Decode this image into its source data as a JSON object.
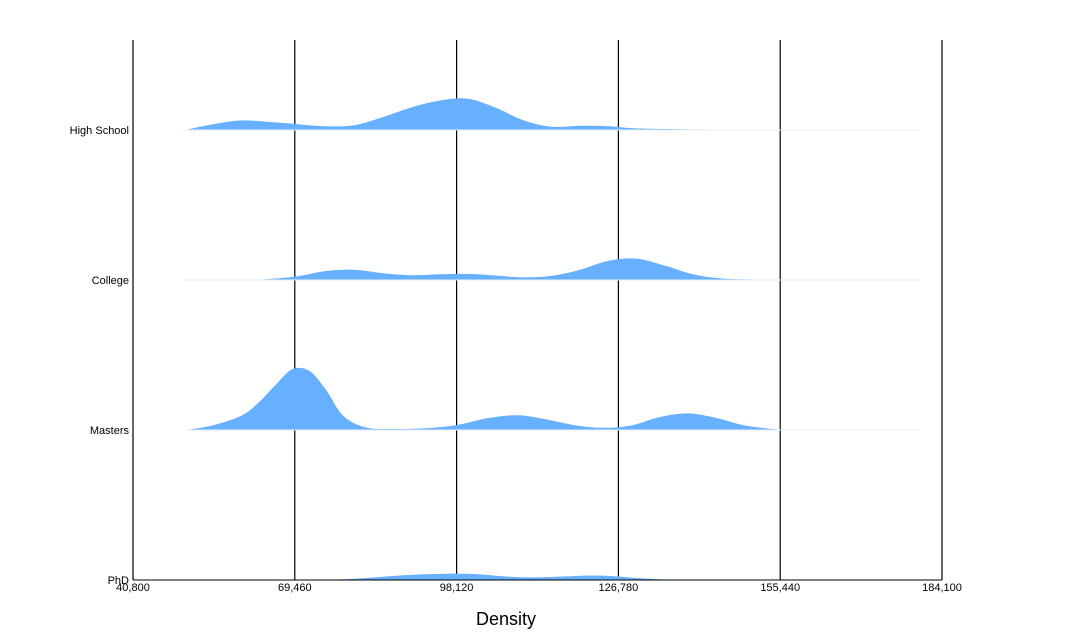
{
  "chart_data": {
    "type": "area",
    "subtype": "ridgeline",
    "title": "",
    "xlabel": "Density",
    "ylabel": "",
    "xlim": [
      40800,
      184100
    ],
    "x_ticks": [
      "40,800",
      "69,460",
      "98,120",
      "126,780",
      "155,440",
      "184,100"
    ],
    "x_tick_values": [
      40800,
      69460,
      98120,
      126780,
      155440,
      184100
    ],
    "grid": "vertical",
    "fill_color": "#66b0ff",
    "categories": [
      "High School",
      "College",
      "Masters",
      "PhD"
    ],
    "series": [
      {
        "name": "High School",
        "x": [
          50000,
          55000,
          60000,
          65000,
          70000,
          75000,
          80000,
          85000,
          90000,
          95000,
          100000,
          105000,
          110000,
          115000,
          120000,
          125000,
          130000,
          140000,
          150000,
          160000,
          170000,
          180000
        ],
        "density": [
          0.0,
          0.18,
          0.3,
          0.25,
          0.18,
          0.12,
          0.15,
          0.4,
          0.7,
          0.92,
          0.98,
          0.7,
          0.3,
          0.1,
          0.13,
          0.12,
          0.05,
          0.02,
          0.01,
          0.005,
          0.002,
          0.0
        ]
      },
      {
        "name": "College",
        "x": [
          50000,
          60000,
          65000,
          70000,
          75000,
          80000,
          85000,
          90000,
          95000,
          100000,
          105000,
          110000,
          115000,
          120000,
          125000,
          130000,
          135000,
          140000,
          145000,
          150000,
          160000,
          170000,
          180000
        ],
        "density": [
          0.0,
          0.0,
          0.03,
          0.12,
          0.28,
          0.32,
          0.21,
          0.15,
          0.18,
          0.19,
          0.14,
          0.08,
          0.13,
          0.32,
          0.6,
          0.67,
          0.45,
          0.18,
          0.05,
          0.02,
          0.005,
          0.002,
          0.0
        ]
      },
      {
        "name": "Masters",
        "x": [
          50000,
          55000,
          60000,
          63000,
          66000,
          69000,
          72000,
          75000,
          78000,
          82000,
          87000,
          92000,
          98000,
          104000,
          109000,
          114000,
          119000,
          124000,
          129000,
          134000,
          139000,
          144000,
          149000,
          155000,
          160000,
          170000,
          180000
        ],
        "density": [
          0.0,
          0.15,
          0.45,
          0.85,
          1.4,
          1.9,
          1.85,
          1.25,
          0.45,
          0.08,
          0.03,
          0.05,
          0.15,
          0.38,
          0.46,
          0.33,
          0.15,
          0.07,
          0.14,
          0.4,
          0.52,
          0.38,
          0.15,
          0.02,
          0.01,
          0.003,
          0.0
        ]
      },
      {
        "name": "PhD",
        "x": [
          50000,
          60000,
          70000,
          75000,
          80000,
          85000,
          90000,
          95000,
          98000,
          102000,
          107000,
          112000,
          117000,
          122000,
          126000,
          131000,
          136000,
          141000,
          150000,
          170000,
          180000
        ],
        "density": [
          0.0,
          0.0,
          0.0,
          0.01,
          0.04,
          0.1,
          0.16,
          0.19,
          0.2,
          0.18,
          0.11,
          0.08,
          0.11,
          0.14,
          0.12,
          0.05,
          0.01,
          0.0,
          0.0,
          0.0,
          0.0
        ]
      }
    ]
  }
}
